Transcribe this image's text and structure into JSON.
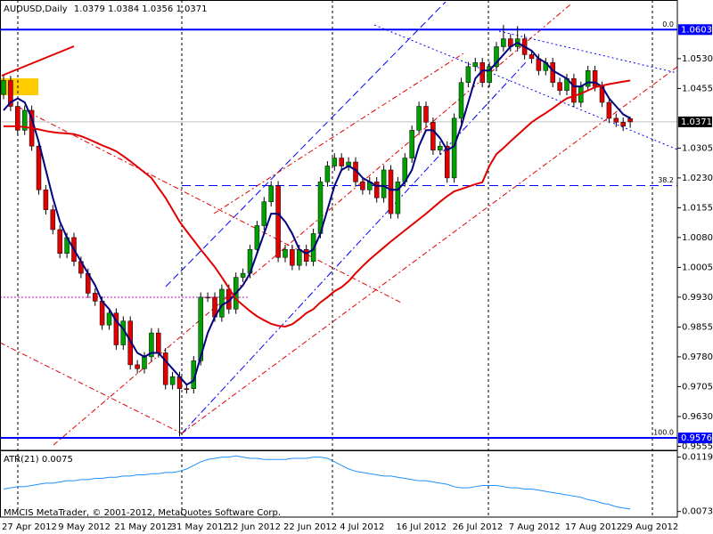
{
  "chart_data": [
    {
      "type": "candlestick",
      "symbol": "AUDUSD,Daily",
      "categories": [
        "27 Apr 2012",
        null,
        null,
        null,
        null,
        null,
        null,
        null,
        "9 May 2012",
        null,
        null,
        null,
        null,
        null,
        null,
        null,
        "21 May 2012",
        null,
        null,
        null,
        null,
        null,
        null,
        null,
        "31 May 2012",
        null,
        null,
        null,
        null,
        null,
        null,
        null,
        "12 Jun 2012",
        null,
        null,
        null,
        null,
        null,
        null,
        null,
        "22 Jun 2012",
        null,
        null,
        null,
        null,
        null,
        null,
        null,
        "4 Jul 2012",
        null,
        null,
        null,
        null,
        null,
        null,
        null,
        "16 Jul 2012",
        null,
        null,
        null,
        null,
        null,
        null,
        null,
        "26 Jul 2012",
        null,
        null,
        null,
        null,
        null,
        null,
        null,
        "7 Aug 2012",
        null,
        null,
        null,
        null,
        null,
        null,
        null,
        "17 Aug 2012",
        null,
        null,
        null,
        null,
        null,
        null,
        null,
        "29 Aug 2012",
        null
      ],
      "open": [
        1.044,
        1.0475,
        1.041,
        1.035,
        1.04,
        1.031,
        1.02,
        1.015,
        1.01,
        1.004,
        1.008,
        1.002,
        0.999,
        0.994,
        0.992,
        0.986,
        0.989,
        0.981,
        0.987,
        0.976,
        0.975,
        0.978,
        0.984,
        0.979,
        0.971,
        0.973,
        0.97,
        0.97,
        0.977,
        0.993,
        0.993,
        0.988,
        0.995,
        0.99,
        0.998,
        0.999,
        1.005,
        1.011,
        1.017,
        1.021,
        1.003,
        1.005,
        1.001,
        1.005,
        1.002,
        1.009,
        1.022,
        1.026,
        1.028,
        1.026,
        1.027,
        1.022,
        1.02,
        1.022,
        1.018,
        1.025,
        1.014,
        1.022,
        1.028,
        1.035,
        1.041,
        1.037,
        1.03,
        1.031,
        1.023,
        1.038,
        1.047,
        1.051,
        1.052,
        1.047,
        1.051,
        1.056,
        1.058,
        1.056,
        1.058,
        1.054,
        1.053,
        1.05,
        1.052,
        1.047,
        1.045,
        1.048,
        1.042,
        1.046,
        1.05,
        1.046,
        1.042,
        1.038,
        1.037,
        1.0379
      ],
      "high": [
        1.0487,
        1.0487,
        1.0422,
        1.0412,
        1.0412,
        1.0322,
        1.0212,
        1.0162,
        1.0112,
        1.0092,
        1.0092,
        1.0032,
        1.0002,
        0.9952,
        0.9932,
        0.9902,
        0.9902,
        0.9882,
        0.9882,
        0.9772,
        0.9792,
        0.9852,
        0.9852,
        0.9802,
        0.9742,
        0.9742,
        0.9712,
        0.9782,
        0.9942,
        0.9942,
        0.9942,
        0.9962,
        0.9962,
        0.9992,
        1.0002,
        1.0062,
        1.0122,
        1.0182,
        1.0222,
        1.0222,
        1.0062,
        1.0062,
        1.0062,
        1.0062,
        1.0102,
        1.0232,
        1.0272,
        1.0292,
        1.0292,
        1.0282,
        1.0282,
        1.0232,
        1.0232,
        1.0232,
        1.0262,
        1.0262,
        1.0232,
        1.0292,
        1.0362,
        1.0422,
        1.0422,
        1.0382,
        1.0322,
        1.0322,
        1.0392,
        1.0482,
        1.0522,
        1.0532,
        1.0532,
        1.0522,
        1.0572,
        1.0615,
        1.0592,
        1.0612,
        1.0592,
        1.0552,
        1.0542,
        1.0532,
        1.0532,
        1.0482,
        1.0492,
        1.0492,
        1.0472,
        1.0512,
        1.0512,
        1.0472,
        1.0432,
        1.0392,
        1.0382,
        1.0384
      ],
      "low": [
        1.0428,
        1.0398,
        1.0338,
        1.0338,
        1.0298,
        1.0188,
        1.0138,
        1.0088,
        1.0028,
        1.0028,
        1.0008,
        0.9978,
        0.9928,
        0.9908,
        0.9848,
        0.9848,
        0.9798,
        0.9798,
        0.9748,
        0.9738,
        0.9738,
        0.9768,
        0.9778,
        0.9698,
        0.9698,
        0.958,
        0.9688,
        0.9688,
        0.9758,
        0.9918,
        0.9868,
        0.9868,
        0.9888,
        0.9888,
        0.9968,
        0.9978,
        1.0038,
        1.0098,
        1.0158,
        1.0018,
        1.0018,
        0.9998,
        0.9998,
        1.0008,
        1.0008,
        1.0078,
        1.0208,
        1.0248,
        1.0248,
        1.0248,
        1.0208,
        1.0188,
        1.0188,
        1.0168,
        1.0168,
        1.0128,
        1.0128,
        1.0208,
        1.0268,
        1.0338,
        1.0358,
        1.0288,
        1.0288,
        1.0218,
        1.0218,
        1.0368,
        1.0458,
        1.0498,
        1.0458,
        1.0458,
        1.0498,
        1.0548,
        1.0548,
        1.0548,
        1.0528,
        1.0518,
        1.0488,
        1.0488,
        1.0458,
        1.0438,
        1.0438,
        1.0408,
        1.0408,
        1.0448,
        1.0448,
        1.0408,
        1.0368,
        1.0358,
        1.0348,
        1.0356
      ],
      "close": [
        1.0475,
        1.041,
        1.035,
        1.04,
        1.031,
        1.02,
        1.015,
        1.01,
        1.004,
        1.008,
        1.002,
        0.999,
        0.994,
        0.992,
        0.986,
        0.989,
        0.981,
        0.987,
        0.976,
        0.975,
        0.978,
        0.984,
        0.979,
        0.971,
        0.973,
        0.97,
        0.97,
        0.977,
        0.993,
        0.993,
        0.988,
        0.995,
        0.99,
        0.998,
        0.999,
        1.005,
        1.011,
        1.017,
        1.021,
        1.003,
        1.005,
        1.001,
        1.005,
        1.002,
        1.009,
        1.022,
        1.026,
        1.028,
        1.026,
        1.027,
        1.022,
        1.02,
        1.022,
        1.018,
        1.025,
        1.014,
        1.022,
        1.028,
        1.035,
        1.041,
        1.037,
        1.03,
        1.031,
        1.023,
        1.038,
        1.047,
        1.051,
        1.052,
        1.047,
        1.051,
        1.056,
        1.058,
        1.056,
        1.058,
        1.054,
        1.053,
        1.05,
        1.052,
        1.047,
        1.045,
        1.048,
        1.042,
        1.046,
        1.05,
        1.046,
        1.042,
        1.038,
        1.037,
        1.036,
        1.0371
      ],
      "up_color": "#00a000",
      "down_color": "#e00000",
      "wick_color": "#000000",
      "series": [
        {
          "color": "#000080",
          "values": [
            1.04,
            1.042,
            1.043,
            1.042,
            1.038,
            1.032,
            1.025,
            1.018,
            1.012,
            1.008,
            1.005,
            1.002,
            0.999,
            0.996,
            0.992,
            0.99,
            0.987,
            0.985,
            0.982,
            0.979,
            0.978,
            0.979,
            0.979,
            0.977,
            0.975,
            0.973,
            0.971,
            0.972,
            0.978,
            0.984,
            0.988,
            0.991,
            0.992,
            0.994,
            0.996,
            0.999,
            1.004,
            1.009,
            1.014,
            1.014,
            1.012,
            1.009,
            1.005,
            1.004,
            1.005,
            1.009,
            1.015,
            1.021,
            1.025,
            1.026,
            1.025,
            1.023,
            1.022,
            1.021,
            1.021,
            1.02,
            1.02,
            1.022,
            1.025,
            1.031,
            1.035,
            1.035,
            1.033,
            1.03,
            1.031,
            1.036,
            1.042,
            1.048,
            1.05,
            1.05,
            1.052,
            1.054,
            1.056,
            1.057,
            1.056,
            1.055,
            1.053,
            1.052,
            1.05,
            1.049,
            1.048,
            1.046,
            1.046,
            1.047,
            1.047,
            1.046,
            1.043,
            1.041,
            1.039,
            1.038
          ]
        },
        {
          "color": "#e00000",
          "values": [
            1.036,
            1.036,
            1.036,
            1.0358,
            1.0355,
            1.0352,
            1.0348,
            1.0345,
            1.0343,
            1.0342,
            1.034,
            1.0335,
            1.0328,
            1.032,
            1.0312,
            1.0305,
            1.0297,
            1.0285,
            1.0272,
            1.0258,
            1.0244,
            1.023,
            1.0205,
            1.018,
            1.015,
            1.012,
            1.0096,
            1.0073,
            1.005,
            1.0028,
            1.0006,
            0.998,
            0.9953,
            0.9925,
            0.991,
            0.9895,
            0.9882,
            0.9872,
            0.9863,
            0.9858,
            0.9856,
            0.9862,
            0.9875,
            0.989,
            0.99,
            0.9917,
            0.993,
            0.9945,
            0.9955,
            0.997,
            0.999,
            1.0008,
            1.0025,
            1.004,
            1.0055,
            1.007,
            1.0084,
            1.0098,
            1.0112,
            1.0126,
            1.014,
            1.0155,
            1.017,
            1.0184,
            1.0196,
            1.0202,
            1.0208,
            1.0214,
            1.0219,
            1.026,
            1.029,
            1.0305,
            1.0322,
            1.0338,
            1.0354,
            1.037,
            1.0382,
            1.0393,
            1.0405,
            1.0418,
            1.043,
            1.0436,
            1.0442,
            1.045,
            1.0458,
            1.0462,
            1.0466,
            1.0469,
            1.0472,
            1.0475
          ]
        }
      ],
      "levels": [
        {
          "value": 1.0603,
          "color": "#0000ff"
        },
        {
          "value": 0.9576,
          "color": "#0000ff"
        }
      ],
      "fib": [
        {
          "value": 0,
          "label": "0.0"
        },
        {
          "value": 38.2,
          "label": "38.2"
        },
        {
          "value": 100,
          "label": "100.0"
        }
      ],
      "ylim": [
        0.9547,
        1.0673
      ],
      "yticks": [
        {
          "value": 1.053,
          "label": "1.0530"
        },
        {
          "value": 1.0455,
          "label": "1.0455"
        },
        {
          "value": 1.0305,
          "label": "1.0305"
        },
        {
          "value": 1.023,
          "label": "1.0230"
        },
        {
          "value": 1.0155,
          "label": "1.0155"
        },
        {
          "value": 1.008,
          "label": "1.0080"
        },
        {
          "value": 1.0005,
          "label": "1.0005"
        },
        {
          "value": 0.993,
          "label": "0.9930"
        },
        {
          "value": 0.9855,
          "label": "0.9855"
        },
        {
          "value": 0.978,
          "label": "0.9780"
        },
        {
          "value": 0.9705,
          "label": "0.9705"
        },
        {
          "value": 0.963,
          "label": "0.9630"
        },
        {
          "value": 0.9555,
          "label": "0.9555"
        }
      ]
    },
    {
      "type": "line",
      "title": "ATR(21)",
      "color": "#1e90ff",
      "values": [
        0.0092,
        0.0093,
        0.0094,
        0.0094,
        0.0095,
        0.0096,
        0.0097,
        0.0097,
        0.0098,
        0.0099,
        0.0099,
        0.01,
        0.01,
        0.0101,
        0.0101,
        0.0102,
        0.0102,
        0.0103,
        0.0103,
        0.0104,
        0.0104,
        0.0105,
        0.0105,
        0.0106,
        0.0106,
        0.0107,
        0.0109,
        0.0112,
        0.0115,
        0.0117,
        0.0118,
        0.0119,
        0.0119,
        0.012,
        0.0119,
        0.0118,
        0.0118,
        0.0117,
        0.0117,
        0.0117,
        0.0117,
        0.0118,
        0.0118,
        0.0118,
        0.0119,
        0.0119,
        0.0118,
        0.0115,
        0.0112,
        0.0109,
        0.0107,
        0.0106,
        0.0105,
        0.0104,
        0.0103,
        0.0103,
        0.0102,
        0.0101,
        0.01,
        0.0099,
        0.0099,
        0.0098,
        0.0097,
        0.0096,
        0.0094,
        0.0093,
        0.0093,
        0.0094,
        0.0095,
        0.0095,
        0.0095,
        0.0094,
        0.0093,
        0.0093,
        0.0092,
        0.0092,
        0.0091,
        0.009,
        0.0089,
        0.0088,
        0.0087,
        0.0086,
        0.0085,
        0.0083,
        0.0082,
        0.008,
        0.0079,
        0.0077,
        0.0076,
        0.0075
      ],
      "ylim": [
        0.0069,
        0.0124
      ],
      "yticks": [
        0.0119,
        0.0073
      ],
      "annotation": "MMCIS MetaTrader, © 2001-2012, MetaQuotes Software Corp."
    }
  ]
}
